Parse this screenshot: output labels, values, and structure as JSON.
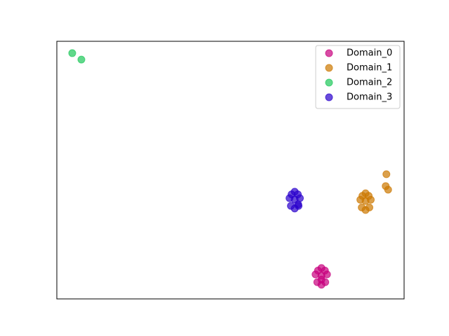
{
  "chart_data": {
    "type": "scatter",
    "xlim": [
      0,
      100
    ],
    "ylim": [
      0,
      100
    ],
    "legend": "upper right",
    "alpha": 0.7,
    "series": [
      {
        "name": "Domain_0",
        "color": "#c8007d",
        "x": [
          76.2,
          74.5,
          77.8,
          75.0,
          77.3,
          76.2,
          76.2,
          75.2,
          77.2,
          76.2
        ],
        "values": [
          9.0,
          9.5,
          9.5,
          6.5,
          6.5,
          12.0,
          5.5,
          11.0,
          11.0,
          7.5
        ]
      },
      {
        "name": "Domain_1",
        "color": "#cc7700",
        "x": [
          88.9,
          87.4,
          90.4,
          87.8,
          90.0,
          88.9,
          88.9,
          88.0,
          89.8,
          94.9,
          94.7,
          95.4
        ],
        "values": [
          38.0,
          38.5,
          38.5,
          35.5,
          35.5,
          41.0,
          34.5,
          40.0,
          40.0,
          48.4,
          43.8,
          42.4
        ]
      },
      {
        "name": "Domain_2",
        "color": "#1ec85a",
        "x": [
          4.44,
          7.07
        ],
        "values": [
          95.4,
          92.9
        ]
      },
      {
        "name": "Domain_3",
        "color": "#2a00cc",
        "x": [
          68.5,
          67.0,
          70.0,
          67.4,
          69.6,
          68.5,
          68.5,
          67.6,
          69.4,
          69.5
        ],
        "values": [
          38.6,
          39.1,
          39.1,
          36.1,
          36.1,
          41.6,
          35.1,
          40.6,
          40.6,
          36.7
        ]
      }
    ]
  }
}
